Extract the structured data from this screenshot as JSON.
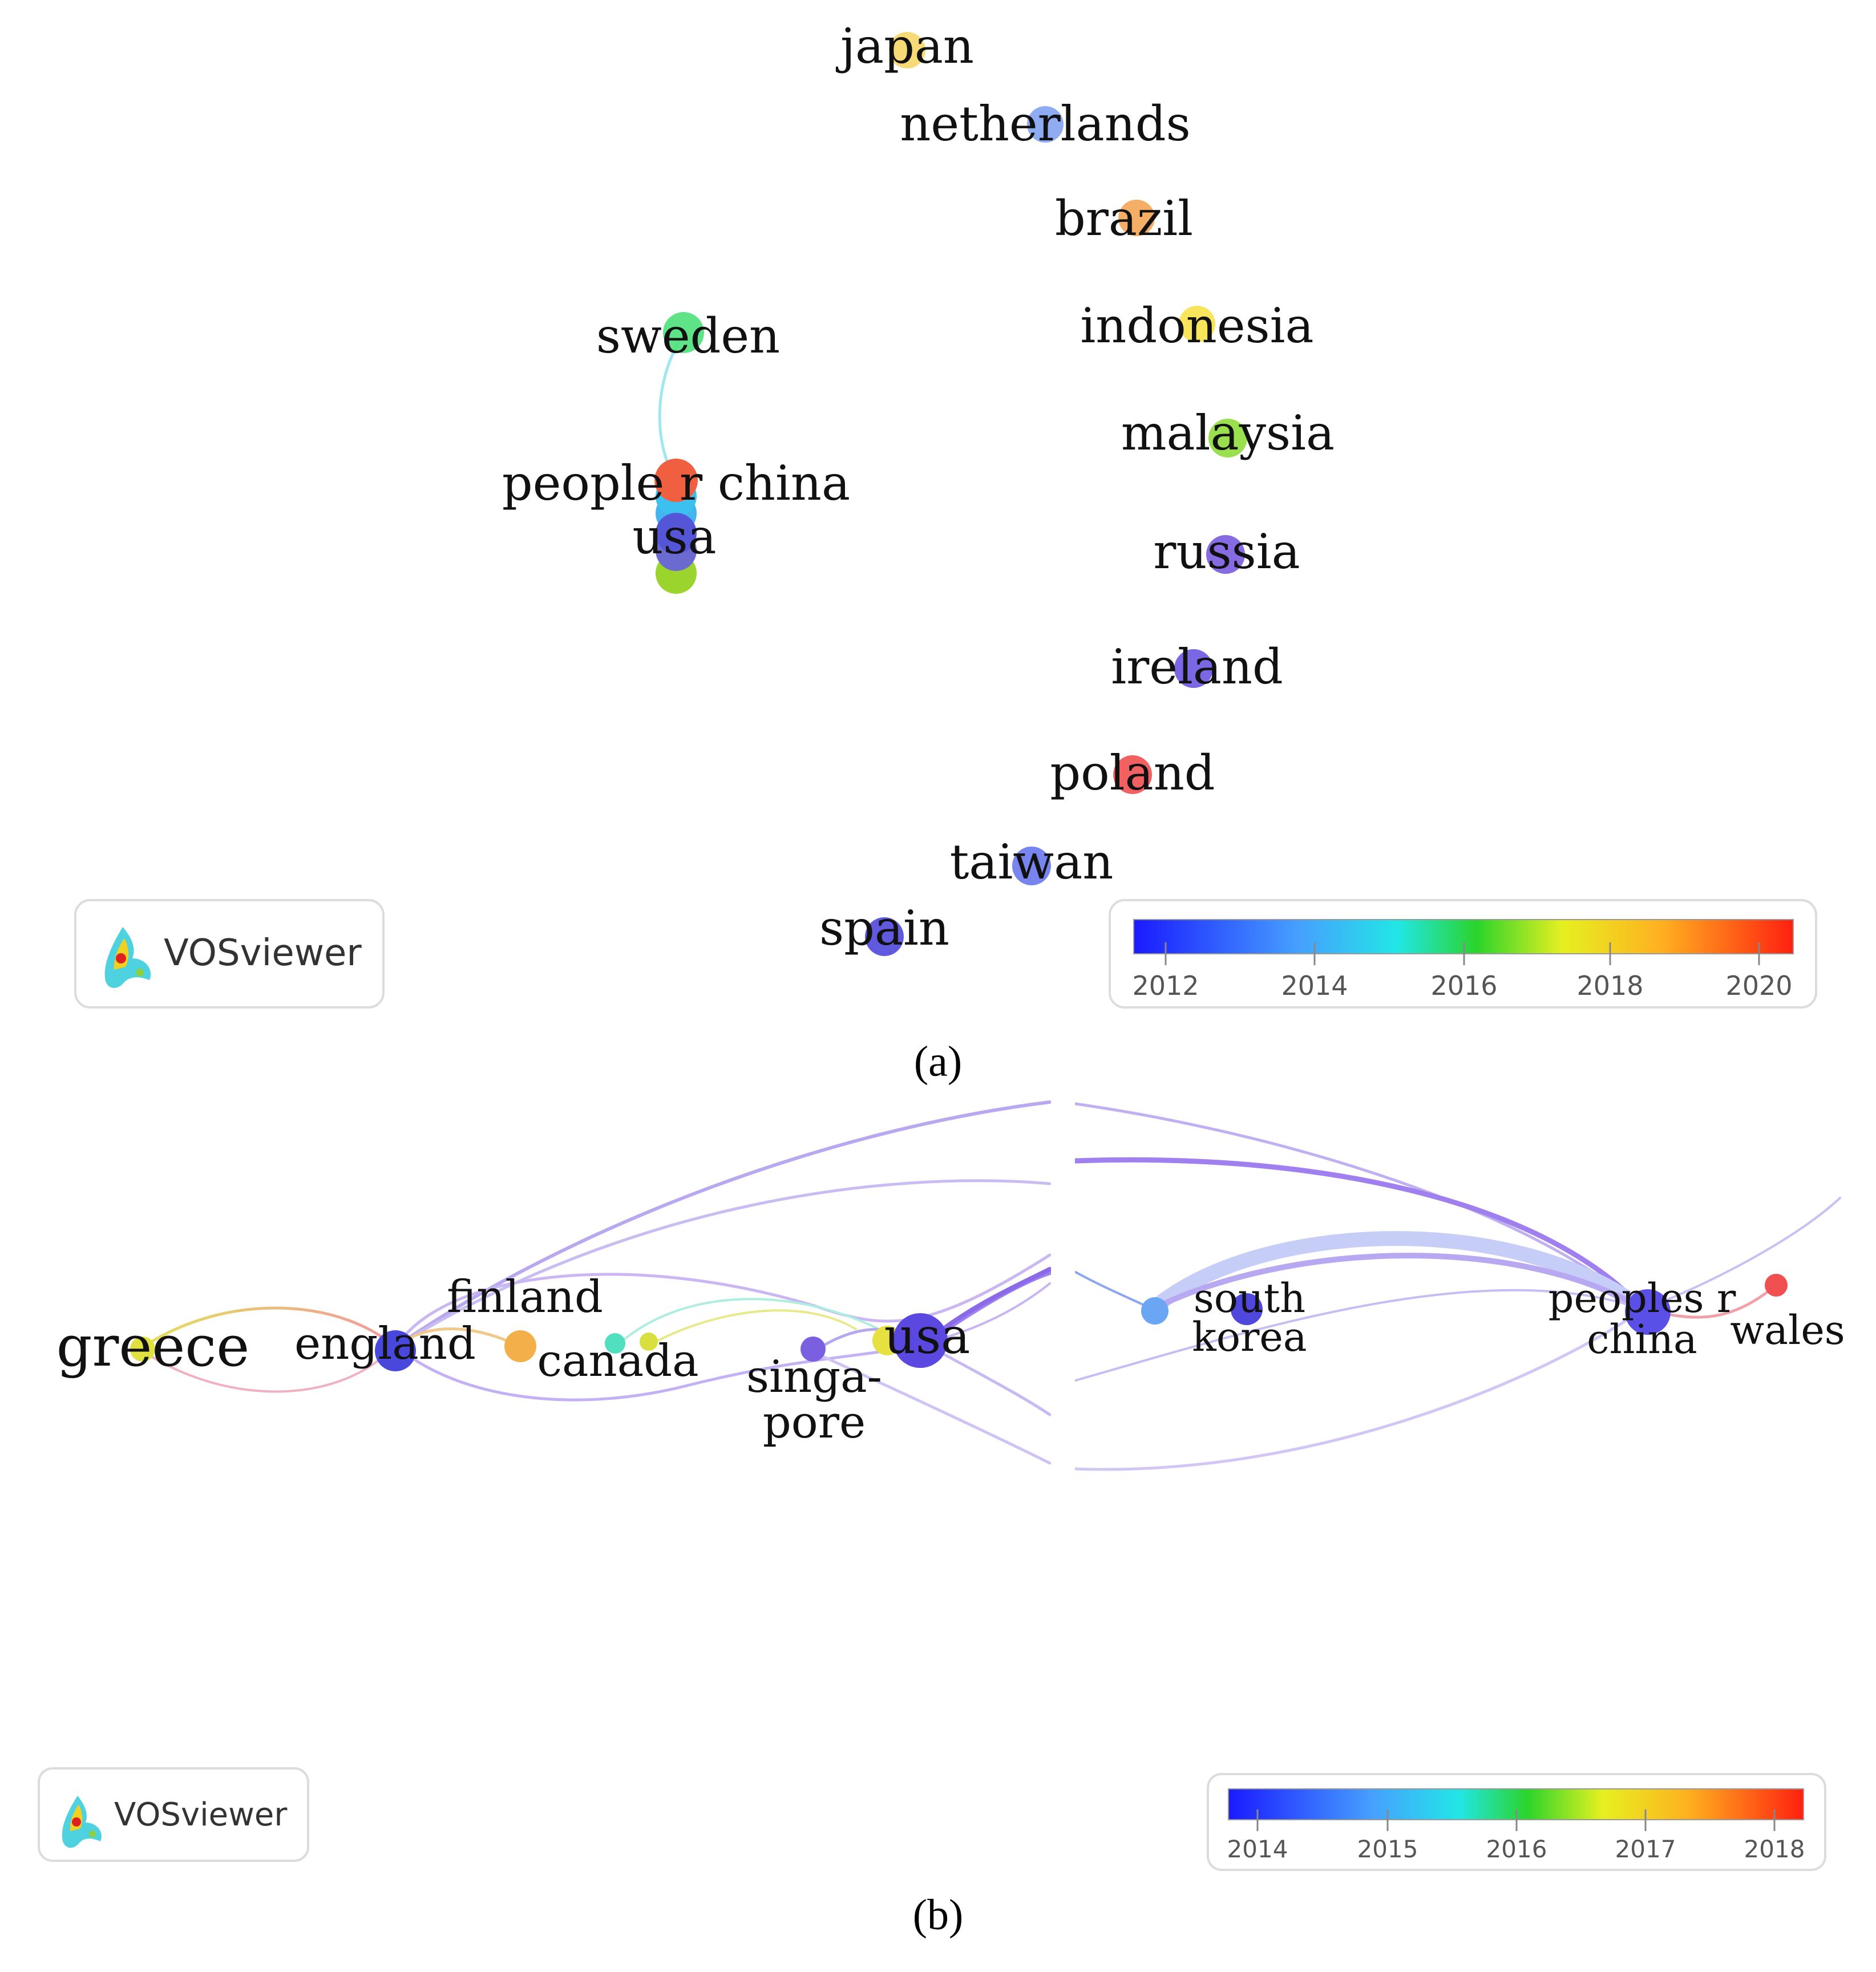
{
  "panel_a": {
    "caption": "(a)",
    "logo": "VOSviewer",
    "nodes": [
      {
        "label": "japan",
        "color": "#f4d35e"
      },
      {
        "label": "netherlands",
        "color": "#7b9cf0"
      },
      {
        "label": "brazil",
        "color": "#f3a04a"
      },
      {
        "label": "sweden",
        "color": "#4ee07a"
      },
      {
        "label": "indonesia",
        "color": "#f7e040"
      },
      {
        "label": "malaysia",
        "color": "#8fdc3a"
      },
      {
        "label": "people r china",
        "color": "#f06040"
      },
      {
        "label": "usa",
        "color": "#5555d8"
      },
      {
        "label": "russia",
        "color": "#7a5be0"
      },
      {
        "label": "ireland",
        "color": "#6a56e0"
      },
      {
        "label": "poland",
        "color": "#f05050"
      },
      {
        "label": "taiwan",
        "color": "#6a78ec"
      },
      {
        "label": "spain",
        "color": "#5048dc"
      }
    ],
    "colorbar": {
      "ticks": [
        "2012",
        "2014",
        "2016",
        "2018",
        "2020"
      ]
    }
  },
  "panel_b": {
    "caption": "(b)",
    "logo": "VOSviewer",
    "nodes": [
      {
        "label": "greece",
        "color": "#e0e040"
      },
      {
        "label": "england",
        "color": "#4848dc"
      },
      {
        "label": "finland",
        "color": "#f3b04a"
      },
      {
        "label": "canada",
        "color": "#50e0c0"
      },
      {
        "label": "singa-",
        "color": "#7a60e0"
      },
      {
        "label": "pore",
        "color": "#7a60e0"
      },
      {
        "label": "usa",
        "color": "#5a48e0"
      },
      {
        "label": "south",
        "color": "#5048dc"
      },
      {
        "label": "korea",
        "color": "#5048dc"
      },
      {
        "label": "peoples r",
        "color": "#5a50e8"
      },
      {
        "label": "china",
        "color": "#5a50e8"
      },
      {
        "label": "wales",
        "color": "#f05050"
      }
    ],
    "colorbar": {
      "ticks": [
        "2014",
        "2015",
        "2016",
        "2017",
        "2018"
      ]
    }
  }
}
